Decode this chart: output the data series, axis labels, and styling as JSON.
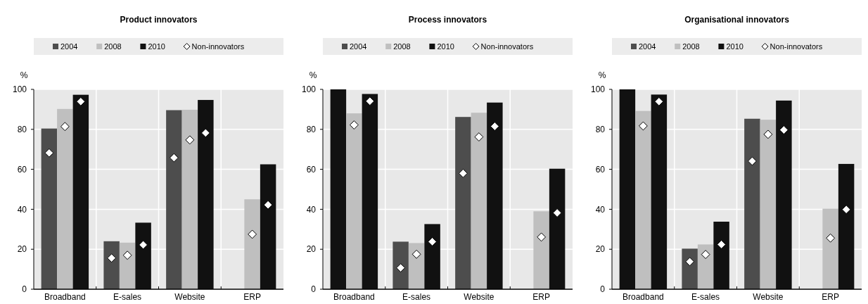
{
  "chart_data": [
    {
      "type": "bar",
      "title": "Product innovators",
      "ylabel": "%",
      "categories": [
        "Broadband",
        "E-sales",
        "Website",
        "ERP"
      ],
      "ylim": [
        0,
        100
      ],
      "yticks": [
        0,
        20,
        40,
        60,
        80,
        100
      ],
      "grid": true,
      "legend": "top",
      "marker": "diamond",
      "series": [
        {
          "name": "2004",
          "color": "#4d4d4d",
          "values": [
            80.4,
            24,
            89.6,
            null
          ]
        },
        {
          "name": "2008",
          "color": "#bfbfbf",
          "values": [
            90.2,
            23.3,
            89.8,
            45
          ]
        },
        {
          "name": "2010",
          "color": "#111111",
          "values": [
            97.3,
            33.3,
            94.7,
            62.5
          ]
        },
        {
          "name": "Non-innovators",
          "type": "scatter",
          "color": "#ffffff",
          "x": [
            "Broadband",
            "E-sales",
            "Website",
            "ERP"
          ],
          "values": [
            68.2,
            15.6,
            65.8,
            null
          ]
        },
        {
          "type": "scatter",
          "color": "#ffffff",
          "x": [
            "Broadband",
            "E-sales",
            "Website",
            "ERP"
          ],
          "values": [
            81.4,
            17,
            74.7,
            27.5
          ]
        },
        {
          "type": "scatter",
          "color": "#ffffff",
          "x": [
            "Broadband",
            "E-sales",
            "Website",
            "ERP"
          ],
          "values": [
            93.9,
            22.2,
            78.2,
            42.2
          ]
        }
      ]
    },
    {
      "type": "bar",
      "title": "Process innovators",
      "ylabel": "%",
      "categories": [
        "Broadband",
        "E-sales",
        "Website",
        "ERP"
      ],
      "ylim": [
        0,
        100
      ],
      "yticks": [
        0,
        20,
        40,
        60,
        80,
        100
      ],
      "grid": true,
      "legend": "top",
      "marker": "diamond",
      "series": [
        {
          "name": "2004",
          "color": "#4d4d4d",
          "colors": [
            "#111111",
            "#4d4d4d",
            "#4d4d4d",
            null
          ],
          "values": [
            100,
            23.8,
            86.2,
            null
          ]
        },
        {
          "name": "2008",
          "color": "#bfbfbf",
          "values": [
            88,
            23.1,
            88.3,
            39
          ]
        },
        {
          "name": "2010",
          "color": "#111111",
          "values": [
            97.7,
            32.6,
            93.4,
            60.3
          ]
        },
        {
          "name": "Non-innovators",
          "type": "scatter",
          "color": "#ffffff",
          "x": [
            "Broadband",
            "E-sales",
            "Website",
            "ERP"
          ],
          "values": [
            null,
            10.7,
            58,
            null
          ]
        },
        {
          "type": "scatter",
          "color": "#ffffff",
          "x": [
            "Broadband",
            "E-sales",
            "Website",
            "ERP"
          ],
          "values": [
            82.2,
            17.5,
            76.2,
            26.1
          ]
        },
        {
          "type": "scatter",
          "color": "#ffffff",
          "x": [
            "Broadband",
            "E-sales",
            "Website",
            "ERP"
          ],
          "values": [
            94.1,
            23.8,
            81.5,
            38.2
          ]
        }
      ]
    },
    {
      "type": "bar",
      "title": "Organisational innovators",
      "ylabel": "%",
      "categories": [
        "Broadband",
        "E-sales",
        "Website",
        "ERP"
      ],
      "ylim": [
        0,
        100
      ],
      "yticks": [
        0,
        20,
        40,
        60,
        80,
        100
      ],
      "grid": true,
      "legend": "top",
      "marker": "diamond",
      "series": [
        {
          "name": "2004",
          "color": "#4d4d4d",
          "colors": [
            "#111111",
            "#4d4d4d",
            "#4d4d4d",
            null
          ],
          "values": [
            100,
            20.3,
            85.3,
            null
          ]
        },
        {
          "name": "2008",
          "color": "#bfbfbf",
          "values": [
            89.2,
            22.4,
            84.8,
            40.3
          ]
        },
        {
          "name": "2010",
          "color": "#111111",
          "values": [
            97.4,
            33.8,
            94.4,
            62.7
          ]
        },
        {
          "name": "Non-innovators",
          "type": "scatter",
          "color": "#ffffff",
          "x": [
            "Broadband",
            "E-sales",
            "Website",
            "ERP"
          ],
          "values": [
            null,
            13.8,
            64.1,
            null
          ]
        },
        {
          "type": "scatter",
          "color": "#ffffff",
          "x": [
            "Broadband",
            "E-sales",
            "Website",
            "ERP"
          ],
          "values": [
            81.7,
            17.4,
            77.5,
            25.6
          ]
        },
        {
          "type": "scatter",
          "color": "#ffffff",
          "x": [
            "Broadband",
            "E-sales",
            "Website",
            "ERP"
          ],
          "values": [
            93.9,
            22.4,
            79.7,
            39.9
          ]
        }
      ]
    }
  ]
}
